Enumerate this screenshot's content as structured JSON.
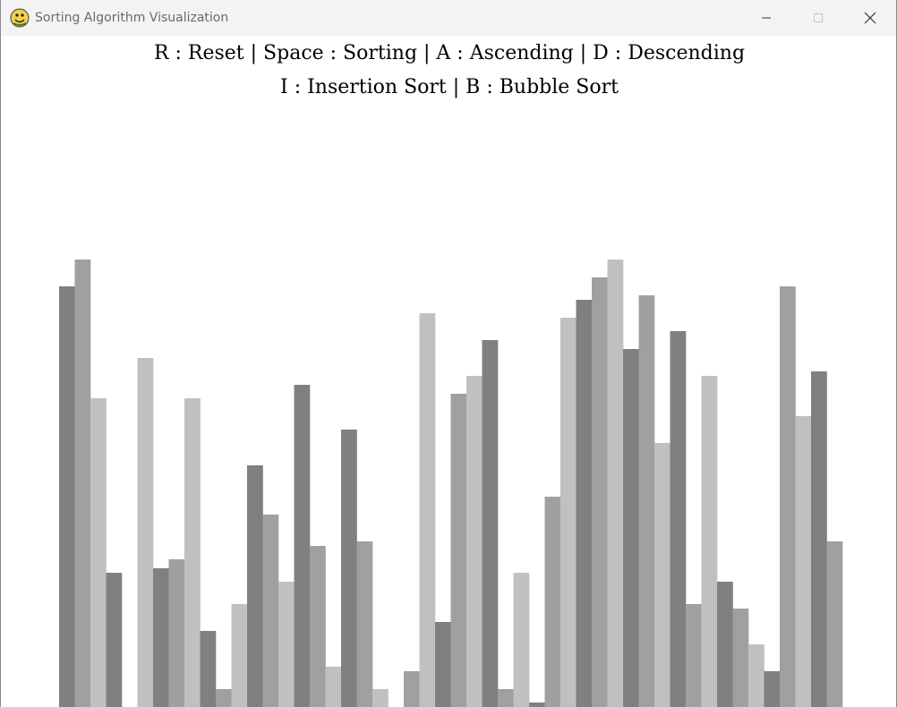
{
  "window": {
    "title": "Sorting Algorithm Visualization",
    "app_icon": "python-snake-icon"
  },
  "controls": {
    "line1": "R : Reset | Space : Sorting | A : Ascending | D : Descending",
    "line2": "I : Insertion Sort | B : Bubble Sort"
  },
  "colors": {
    "bar_dark": "#808080",
    "bar_mid": "#a0a0a0",
    "bar_light": "#c0c0c0"
  },
  "chart_data": {
    "type": "bar",
    "ylim": [
      0,
      100
    ],
    "values": [
      94,
      100,
      69,
      30,
      0,
      78,
      31,
      33,
      69,
      17,
      4,
      23,
      54,
      43,
      28,
      72,
      36,
      9,
      62,
      37,
      4,
      0,
      8,
      88,
      19,
      70,
      74,
      82,
      4,
      30,
      1,
      47,
      87,
      91,
      96,
      100,
      80,
      92,
      59,
      84,
      23,
      74,
      28,
      22,
      14,
      8,
      94,
      65,
      75,
      37
    ]
  }
}
